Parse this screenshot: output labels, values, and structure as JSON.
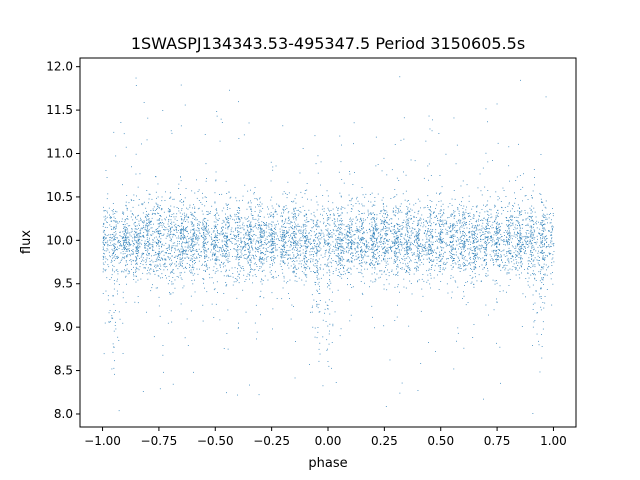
{
  "chart_data": {
    "type": "scatter",
    "title": "1SWASPJ134343.53-495347.5 Period 3150605.5s",
    "xlabel": "phase",
    "ylabel": "flux",
    "xlim": [
      -1.1,
      1.1
    ],
    "ylim": [
      7.85,
      12.1
    ],
    "x_ticks": [
      -1.0,
      -0.75,
      -0.5,
      -0.25,
      0.0,
      0.25,
      0.5,
      0.75,
      1.0
    ],
    "x_tick_labels": [
      "−1.00",
      "−0.75",
      "−0.50",
      "−0.25",
      "0.00",
      "0.25",
      "0.50",
      "0.75",
      "1.00"
    ],
    "y_ticks": [
      8.0,
      8.5,
      9.0,
      9.5,
      10.0,
      10.5,
      11.0,
      11.5,
      12.0
    ],
    "y_tick_labels": [
      "8.0",
      "8.5",
      "9.0",
      "9.5",
      "10.0",
      "10.5",
      "11.0",
      "11.5",
      "12.0"
    ],
    "grid": false,
    "marker_color": "#1f77b4",
    "series": [
      {
        "phase_range": [
          -1.0,
          1.0
        ],
        "flux_center": 10.0,
        "typical_flux_range": [
          9.4,
          10.6
        ],
        "full_flux_range": [
          8.0,
          12.0
        ],
        "dips_near_phase": [
          -0.95,
          -0.05,
          0.0,
          0.93
        ]
      }
    ]
  }
}
